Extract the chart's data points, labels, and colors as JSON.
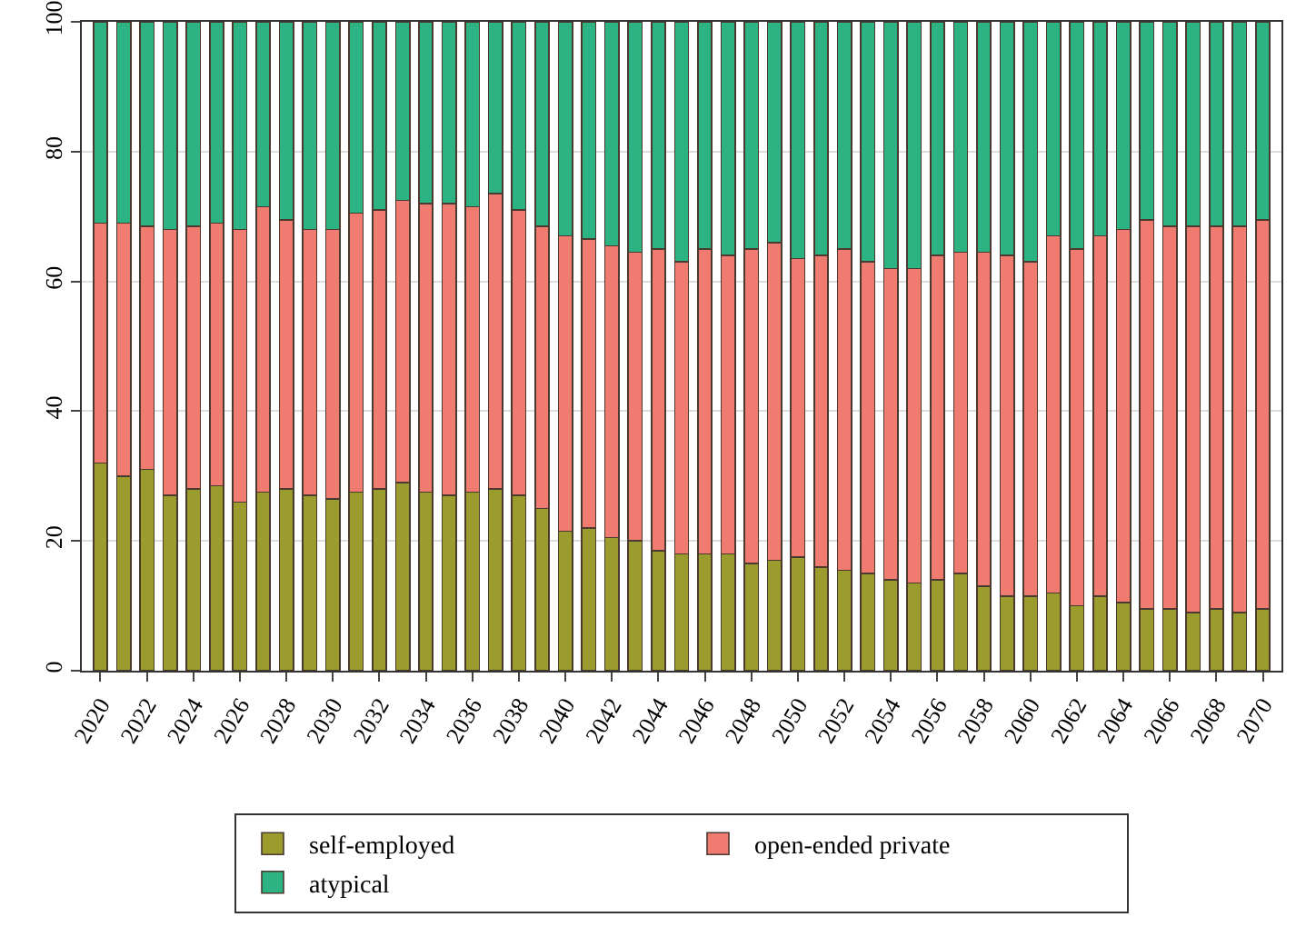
{
  "chart_data": {
    "type": "bar",
    "stacked": true,
    "categories": [
      "2020",
      null,
      "2022",
      null,
      "2024",
      null,
      "2026",
      null,
      "2028",
      null,
      "2030",
      null,
      "2032",
      null,
      "2034",
      null,
      "2036",
      null,
      "2038",
      null,
      "2040",
      null,
      "2042",
      null,
      "2044",
      null,
      "2046",
      null,
      "2048",
      null,
      "2050",
      null,
      "2052",
      null,
      "2054",
      null,
      "2056",
      null,
      "2058",
      null,
      "2060",
      null,
      "2062",
      null,
      "2064",
      null,
      "2066",
      null,
      "2068",
      null,
      "2070"
    ],
    "series": [
      {
        "name": "self-employed",
        "color": "#9a9c2e",
        "values": [
          32,
          30,
          31,
          27,
          28,
          28.5,
          26,
          27.5,
          28,
          27,
          26.5,
          27.5,
          28,
          29,
          27.5,
          27,
          27.5,
          28,
          27,
          25,
          21.5,
          22,
          20.5,
          20,
          18.5,
          18,
          18,
          18,
          16.5,
          17,
          17.5,
          16,
          15.5,
          15,
          14,
          13.5,
          14,
          15,
          13,
          11.5,
          11.5,
          12,
          10,
          11.5,
          10.5,
          9.5,
          9.5,
          9,
          9.5,
          9,
          9.5
        ]
      },
      {
        "name": "open-ended private",
        "color": "#f07b70",
        "values": [
          37,
          39,
          37.5,
          41,
          40.5,
          40.5,
          42,
          44,
          41.5,
          41,
          41.5,
          43,
          43,
          43.5,
          44.5,
          45,
          44,
          45.5,
          44,
          43.5,
          45.5,
          44.5,
          45,
          44.5,
          46.5,
          45,
          47,
          46,
          48.5,
          49,
          46,
          48,
          49.5,
          48,
          48,
          48.5,
          50,
          49.5,
          51.5,
          52.5,
          51.5,
          55,
          55,
          55.5,
          57.5,
          60,
          59,
          59.5,
          59,
          59.5,
          60
        ]
      },
      {
        "name": "atypical",
        "color": "#2db383",
        "values": [
          31,
          31,
          31.5,
          32,
          31.5,
          31,
          32,
          28.5,
          30.5,
          32,
          32,
          29.5,
          29,
          27.5,
          28,
          28,
          28.5,
          26.5,
          29,
          31.5,
          33,
          33.5,
          34.5,
          35.5,
          35,
          37,
          35,
          36,
          35,
          34,
          36.5,
          36,
          35,
          37,
          38,
          38,
          36,
          35.5,
          35.5,
          36,
          37,
          33,
          35,
          33,
          32,
          30.5,
          31.5,
          31.5,
          31.5,
          31.5,
          30.5
        ]
      }
    ],
    "ylim": [
      0,
      100
    ],
    "yticks": [
      0,
      20,
      40,
      60,
      80,
      100
    ],
    "grid": "y",
    "legend": "bottom"
  }
}
